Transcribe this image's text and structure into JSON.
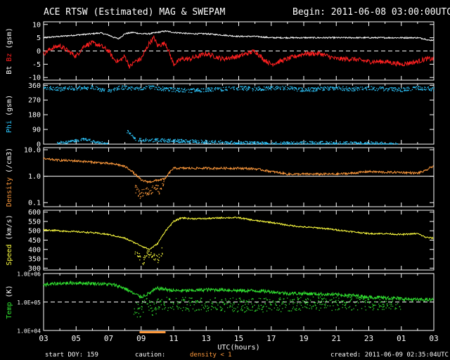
{
  "header": {
    "title": "ACE RTSW (Estimated) MAG & SWEPAM",
    "begin": "Begin: 2011-06-08 03:00:00UTC"
  },
  "footer": {
    "start_doy": "start DOY: 159",
    "caution": "caution:",
    "density_note": "density < 1",
    "created": "created: 2011-06-09 02:35:04UTC"
  },
  "colors": {
    "bt": "#ffffff",
    "bz": "#ff2020",
    "phi": "#2ec8ff",
    "density": "#ff9a3c",
    "speed": "#ffff40",
    "temp": "#30e030",
    "caution_bar": "#ff9a3c"
  },
  "chart_data": {
    "type": "line",
    "x_axis": {
      "label": "UTC(hours)",
      "range_hours": [
        3,
        27
      ],
      "ticks": [
        "03",
        "05",
        "07",
        "09",
        "11",
        "13",
        "15",
        "17",
        "19",
        "21",
        "23",
        "01",
        "03"
      ]
    },
    "caution_spans_hours": [
      [
        8.9,
        10.5
      ]
    ],
    "panels": [
      {
        "id": "mag",
        "ylabel_parts": [
          {
            "text": "Bt",
            "color": "#ffffff"
          },
          {
            "text": "Bz",
            "color": "#ff2020"
          },
          {
            "text": "(gsm)",
            "color": "#ffffff"
          }
        ],
        "ylim": [
          -11,
          11
        ],
        "log": false,
        "yticks": [
          10,
          5,
          0,
          -5,
          -10
        ],
        "ytick_labels": [
          "10",
          "5",
          "0",
          "-5",
          "-10"
        ],
        "hlines": [
          0
        ],
        "series": [
          {
            "name": "Bt",
            "color": "#ffffff",
            "style": "line",
            "noise": 0.25,
            "x": [
              3,
              4,
              5,
              6,
              6.5,
              7,
              7.3,
              7.6,
              7.8,
              8,
              8.5,
              9,
              9.5,
              10,
              10.5,
              11,
              12,
              13,
              14,
              15,
              16,
              17,
              18,
              19,
              20,
              21,
              22,
              23,
              24,
              25,
              26,
              26.5,
              26.7,
              27
            ],
            "y": [
              5,
              5.5,
              6,
              6.5,
              6.8,
              6,
              5.2,
              4.6,
              5.5,
              6.5,
              7,
              6.5,
              6.5,
              7,
              7.5,
              7,
              6.5,
              6.5,
              6,
              5.5,
              5.5,
              5,
              5,
              5,
              5,
              5,
              5,
              5,
              5,
              5,
              5,
              4.5,
              4,
              4.2
            ]
          },
          {
            "name": "Bz",
            "color": "#ff2020",
            "style": "line",
            "noise": 0.9,
            "x": [
              3,
              3.5,
              4,
              4.5,
              5,
              5.5,
              6,
              6.5,
              7,
              7.3,
              7.6,
              8,
              8.3,
              8.6,
              9,
              9.5,
              9.8,
              10,
              10.5,
              11,
              11.5,
              12,
              13,
              14,
              15,
              15.5,
              16,
              16.5,
              17,
              18,
              19,
              20,
              21,
              22,
              23,
              24,
              25,
              26,
              26.5,
              27
            ],
            "y": [
              -1,
              1,
              2,
              0,
              -2,
              2,
              3,
              2,
              0,
              -3,
              -4,
              -2,
              -6,
              -4,
              -3,
              3,
              5,
              2,
              3,
              -5,
              -3,
              -3,
              -1,
              -3,
              -2,
              -1,
              0,
              -3,
              -5,
              -3,
              -1,
              -1,
              -3,
              -3,
              -4,
              -4,
              -5,
              -4,
              -3,
              -3
            ]
          }
        ]
      },
      {
        "id": "phi",
        "ylabel_parts": [
          {
            "text": "Phi",
            "color": "#2ec8ff"
          },
          {
            "text": "(gsm)",
            "color": "#ffffff"
          }
        ],
        "ylim": [
          0,
          370
        ],
        "log": false,
        "yticks": [
          360,
          270,
          180,
          90,
          0
        ],
        "ytick_labels": [
          "360",
          "270",
          "180",
          "90",
          "0"
        ],
        "hlines": [],
        "series": [
          {
            "name": "Phi",
            "color": "#2ec8ff",
            "style": "dots",
            "noise": 12,
            "x": [
              3,
              4,
              5,
              6,
              6.5,
              7,
              7.5,
              8,
              8.5,
              9,
              9.5,
              10,
              10.5,
              11,
              12,
              13,
              14,
              15,
              16,
              17,
              18,
              19,
              20,
              21,
              22,
              23,
              24,
              25,
              26,
              27
            ],
            "y": [
              345,
              340,
              345,
              350,
              335,
              330,
              345,
              350,
              340,
              345,
              350,
              345,
              340,
              335,
              330,
              335,
              340,
              345,
              340,
              345,
              345,
              335,
              340,
              345,
              340,
              345,
              340,
              335,
              345,
              340
            ]
          },
          {
            "name": "Phi-low",
            "color": "#2ec8ff",
            "style": "dots",
            "noise": 8,
            "x": [
              3.8,
              4.5,
              5,
              5.5,
              6,
              6.5,
              7
            ],
            "y": [
              10,
              15,
              25,
              35,
              20,
              10,
              5
            ]
          },
          {
            "name": "Phi-low2",
            "color": "#2ec8ff",
            "style": "dots",
            "noise": 10,
            "x": [
              8.1,
              8.3,
              8.5,
              8.7,
              17,
              19.5,
              24.8
            ],
            "y": [
              80,
              70,
              40,
              30,
              5,
              10,
              5
            ]
          }
        ]
      },
      {
        "id": "density",
        "ylabel_parts": [
          {
            "text": "Density",
            "color": "#ff9a3c"
          },
          {
            "text": "(/cm3)",
            "color": "#ffffff"
          }
        ],
        "ylim": [
          0.07,
          12
        ],
        "log": true,
        "yticks": [
          10,
          1,
          0.1
        ],
        "ytick_labels": [
          "10.0",
          "1.0",
          "0.1"
        ],
        "hlines": [
          1
        ],
        "series": [
          {
            "name": "Density",
            "color": "#ff9a3c",
            "style": "line",
            "noise": 0.04,
            "x": [
              3,
              4,
              5,
              6,
              7,
              7.5,
              8,
              8.3,
              8.6,
              9,
              9.5,
              10,
              10.5,
              10.8,
              11,
              12,
              13,
              14,
              15,
              16,
              17,
              18,
              19,
              20,
              21,
              22,
              23,
              24,
              25,
              26,
              26.5,
              27
            ],
            "y": [
              4.5,
              4,
              3.8,
              3.4,
              3,
              2.8,
              2.3,
              1.8,
              1.2,
              0.7,
              0.6,
              0.7,
              0.8,
              1.5,
              2,
              2,
              2,
              2,
              2,
              1.9,
              1.5,
              1.2,
              1.2,
              1.2,
              1.2,
              1.3,
              1.5,
              1.4,
              1.4,
              1.3,
              1.6,
              2.5
            ]
          },
          {
            "name": "Density-low",
            "color": "#ff9a3c",
            "style": "dots",
            "noise": 0.15,
            "x": [
              8.6,
              8.9,
              9.2,
              9.5,
              9.8,
              10.1,
              10.4
            ],
            "y": [
              0.35,
              0.2,
              0.3,
              0.25,
              0.4,
              0.3,
              0.5
            ]
          }
        ]
      },
      {
        "id": "speed",
        "ylabel_parts": [
          {
            "text": "Speed",
            "color": "#ffff40"
          },
          {
            "text": "(km/s)",
            "color": "#ffffff"
          }
        ],
        "ylim": [
          290,
          610
        ],
        "log": false,
        "yticks": [
          600,
          550,
          500,
          450,
          400,
          350,
          300
        ],
        "ytick_labels": [
          "600",
          "550",
          "500",
          "450",
          "400",
          "350",
          "300"
        ],
        "hlines": [],
        "series": [
          {
            "name": "Speed",
            "color": "#ffff40",
            "style": "line",
            "noise": 4,
            "x": [
              3,
              4,
              5,
              6,
              7,
              7.5,
              8,
              8.5,
              9,
              9.5,
              10,
              10.5,
              11,
              11.5,
              12,
              13,
              14,
              15,
              16,
              17,
              18,
              19,
              20,
              21,
              22,
              23,
              24,
              25,
              26,
              26.5,
              27
            ],
            "y": [
              505,
              500,
              495,
              490,
              480,
              470,
              460,
              440,
              420,
              400,
              430,
              500,
              550,
              570,
              565,
              565,
              570,
              570,
              555,
              545,
              530,
              520,
              515,
              505,
              495,
              485,
              485,
              480,
              485,
              465,
              460
            ]
          },
          {
            "name": "Speed-low",
            "color": "#ffff40",
            "style": "dots",
            "noise": 20,
            "x": [
              8.6,
              8.9,
              9.1,
              9.4,
              9.7,
              10,
              10.3
            ],
            "y": [
              390,
              360,
              340,
              380,
              370,
              350,
              400
            ]
          }
        ]
      },
      {
        "id": "temp",
        "ylabel_parts": [
          {
            "text": "Temp",
            "color": "#30e030"
          },
          {
            "text": "(K)",
            "color": "#ffffff"
          }
        ],
        "ylim": [
          10000,
          1000000
        ],
        "log": true,
        "yticks": [
          1000000,
          100000,
          10000
        ],
        "ytick_labels": [
          "1.0E+06",
          "1.0E+05",
          "1.0E+04"
        ],
        "hlines": [
          100000
        ],
        "series": [
          {
            "name": "Temp",
            "color": "#30e030",
            "style": "line",
            "noise": 0.06,
            "x": [
              3,
              4,
              5,
              6,
              7,
              7.5,
              8,
              8.5,
              9,
              9.5,
              10,
              10.5,
              11,
              12,
              13,
              14,
              15,
              16,
              17,
              18,
              19,
              20,
              21,
              22,
              23,
              24,
              25,
              26,
              27
            ],
            "y": [
              400000,
              450000,
              470000,
              450000,
              420000,
              380000,
              300000,
              200000,
              150000,
              200000,
              300000,
              280000,
              250000,
              250000,
              270000,
              270000,
              250000,
              250000,
              230000,
              200000,
              200000,
              190000,
              180000,
              170000,
              150000,
              140000,
              130000,
              120000,
              120000
            ]
          },
          {
            "name": "Temp-low",
            "color": "#30e030",
            "style": "dots",
            "noise": 0.25,
            "x": [
              8.5,
              8.8,
              9,
              9.3,
              9.6,
              9.9,
              10.2,
              10.5,
              16,
              20,
              25
            ],
            "y": [
              70000,
              50000,
              60000,
              80000,
              60000,
              70000,
              80000,
              90000,
              80000,
              90000,
              100000
            ]
          }
        ]
      }
    ]
  }
}
